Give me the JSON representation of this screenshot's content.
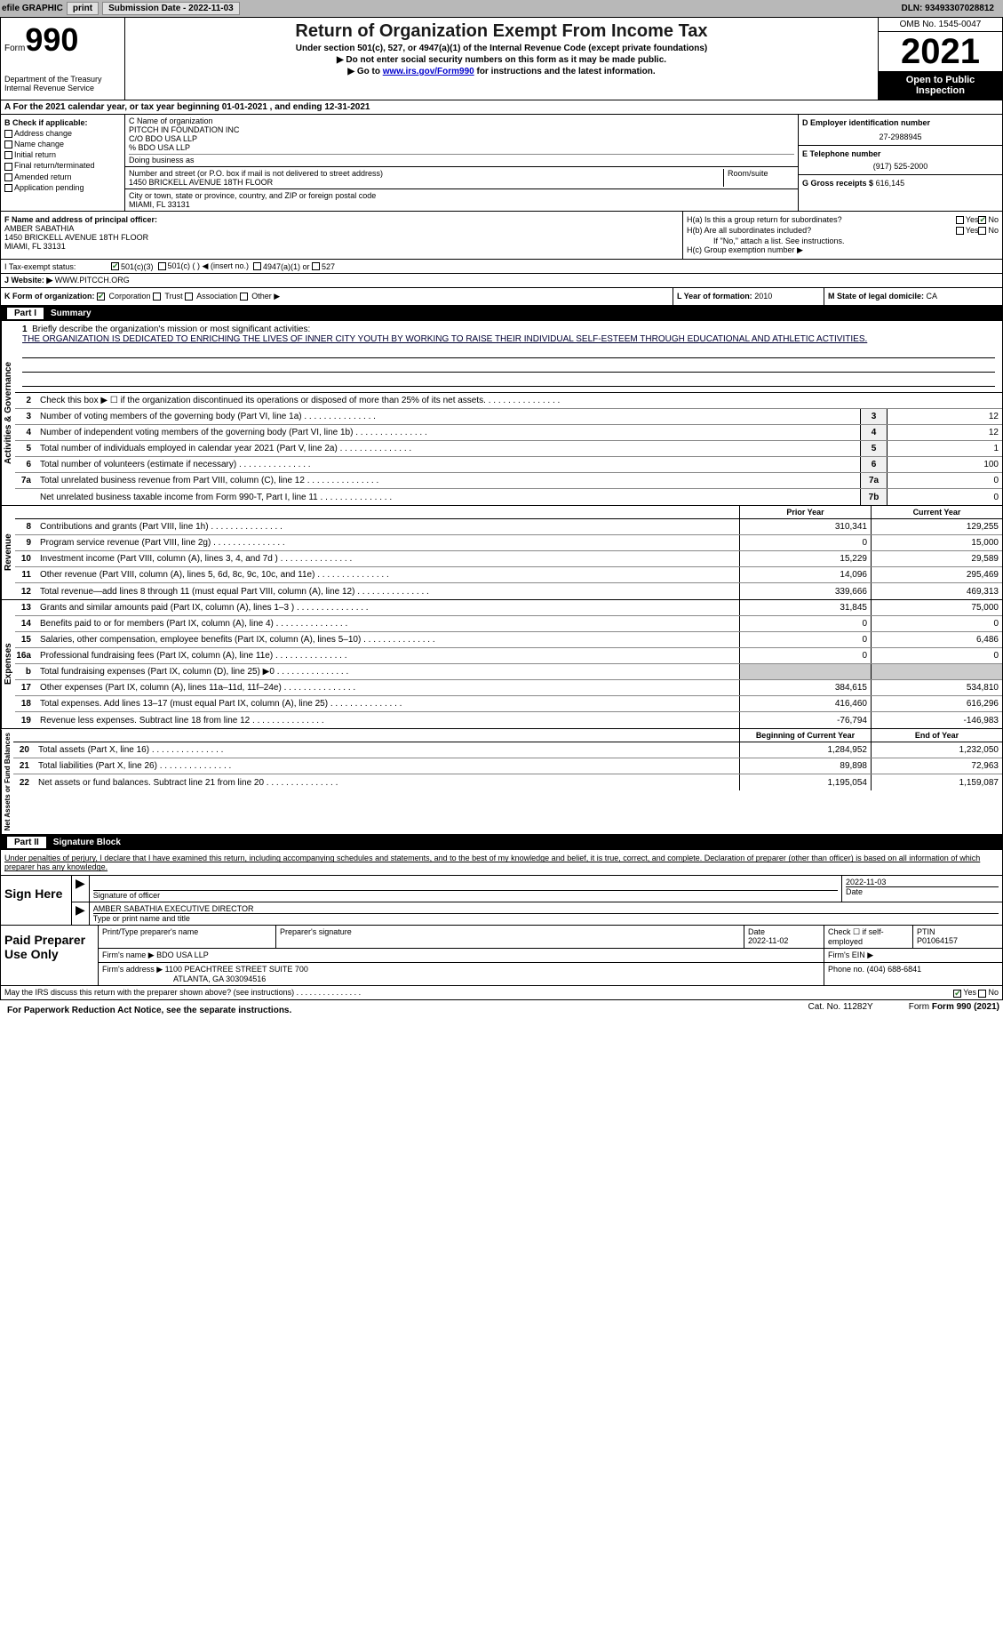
{
  "topbar": {
    "efile_label": "efile GRAPHIC",
    "print_btn": "print",
    "sub_date_label": "Submission Date - 2022-11-03",
    "dln": "DLN: 93493307028812"
  },
  "header": {
    "form_label": "Form",
    "form_num": "990",
    "dept": "Department of the Treasury\nInternal Revenue Service",
    "title": "Return of Organization Exempt From Income Tax",
    "sub1": "Under section 501(c), 527, or 4947(a)(1) of the Internal Revenue Code (except private foundations)",
    "sub2": "▶ Do not enter social security numbers on this form as it may be made public.",
    "sub3_pre": "▶ Go to ",
    "sub3_link": "www.irs.gov/Form990",
    "sub3_post": " for instructions and the latest information.",
    "omb": "OMB No. 1545-0047",
    "year": "2021",
    "open_pub": "Open to Public Inspection"
  },
  "row_a": "A For the 2021 calendar year, or tax year beginning 01-01-2021   , and ending 12-31-2021",
  "col_b": {
    "title": "B Check if applicable:",
    "items": [
      "Address change",
      "Name change",
      "Initial return",
      "Final return/terminated",
      "Amended return",
      "Application pending"
    ]
  },
  "col_c": {
    "name_label": "C Name of organization",
    "name1": "PITCCH IN FOUNDATION INC",
    "name2": "C/O BDO USA LLP",
    "name3": "% BDO USA LLP",
    "dba_label": "Doing business as",
    "addr_label": "Number and street (or P.O. box if mail is not delivered to street address)",
    "addr": "1450 BRICKELL AVENUE 18TH FLOOR",
    "room_label": "Room/suite",
    "city_label": "City or town, state or province, country, and ZIP or foreign postal code",
    "city": "MIAMI, FL  33131"
  },
  "col_right": {
    "ein_label": "D Employer identification number",
    "ein": "27-2988945",
    "phone_label": "E Telephone number",
    "phone": "(917) 525-2000",
    "gross_label": "G Gross receipts $",
    "gross": "616,145"
  },
  "block_f": {
    "label": "F  Name and address of principal officer:",
    "name": "AMBER SABATHIA",
    "addr1": "1450 BRICKELL AVENUE 18TH FLOOR",
    "addr2": "MIAMI, FL  33131"
  },
  "block_h": {
    "ha": "H(a)  Is this a group return for subordinates?",
    "hb": "H(b)  Are all subordinates included?",
    "hb_note": "If \"No,\" attach a list. See instructions.",
    "hc": "H(c)  Group exemption number ▶",
    "yes": "Yes",
    "no": "No"
  },
  "row_i": {
    "label": "I   Tax-exempt status:",
    "opt1": "501(c)(3)",
    "opt2": "501(c) (  ) ◀ (insert no.)",
    "opt3": "4947(a)(1) or",
    "opt4": "527"
  },
  "row_j": {
    "label": "J   Website: ▶",
    "value": "WWW.PITCCH.ORG"
  },
  "row_k": {
    "k1_label": "K Form of organization:",
    "k1_opts": [
      "Corporation",
      "Trust",
      "Association",
      "Other ▶"
    ],
    "k2_label": "L Year of formation:",
    "k2_val": "2010",
    "k3_label": "M State of legal domicile:",
    "k3_val": "CA"
  },
  "part1": {
    "label": "Part I",
    "title": "Summary"
  },
  "mission": {
    "num": "1",
    "label": "Briefly describe the organization's mission or most significant activities:",
    "text": "THE ORGANIZATION IS DEDICATED TO ENRICHING THE LIVES OF INNER CITY YOUTH BY WORKING TO RAISE THEIR INDIVIDUAL SELF-ESTEEM THROUGH EDUCATIONAL AND ATHLETIC ACTIVITIES."
  },
  "gov_lines": [
    {
      "n": "2",
      "d": "Check this box ▶ ☐ if the organization discontinued its operations or disposed of more than 25% of its net assets.",
      "box": "",
      "v": ""
    },
    {
      "n": "3",
      "d": "Number of voting members of the governing body (Part VI, line 1a)",
      "box": "3",
      "v": "12"
    },
    {
      "n": "4",
      "d": "Number of independent voting members of the governing body (Part VI, line 1b)",
      "box": "4",
      "v": "12"
    },
    {
      "n": "5",
      "d": "Total number of individuals employed in calendar year 2021 (Part V, line 2a)",
      "box": "5",
      "v": "1"
    },
    {
      "n": "6",
      "d": "Total number of volunteers (estimate if necessary)",
      "box": "6",
      "v": "100"
    },
    {
      "n": "7a",
      "d": "Total unrelated business revenue from Part VIII, column (C), line 12",
      "box": "7a",
      "v": "0"
    },
    {
      "n": "",
      "d": "Net unrelated business taxable income from Form 990-T, Part I, line 11",
      "box": "7b",
      "v": "0"
    }
  ],
  "col_headers": {
    "prior": "Prior Year",
    "current": "Current Year",
    "beg": "Beginning of Current Year",
    "end": "End of Year"
  },
  "rev_lines": [
    {
      "n": "8",
      "d": "Contributions and grants (Part VIII, line 1h)",
      "p": "310,341",
      "c": "129,255"
    },
    {
      "n": "9",
      "d": "Program service revenue (Part VIII, line 2g)",
      "p": "0",
      "c": "15,000"
    },
    {
      "n": "10",
      "d": "Investment income (Part VIII, column (A), lines 3, 4, and 7d )",
      "p": "15,229",
      "c": "29,589"
    },
    {
      "n": "11",
      "d": "Other revenue (Part VIII, column (A), lines 5, 6d, 8c, 9c, 10c, and 11e)",
      "p": "14,096",
      "c": "295,469"
    },
    {
      "n": "12",
      "d": "Total revenue—add lines 8 through 11 (must equal Part VIII, column (A), line 12)",
      "p": "339,666",
      "c": "469,313"
    }
  ],
  "exp_lines": [
    {
      "n": "13",
      "d": "Grants and similar amounts paid (Part IX, column (A), lines 1–3 )",
      "p": "31,845",
      "c": "75,000"
    },
    {
      "n": "14",
      "d": "Benefits paid to or for members (Part IX, column (A), line 4)",
      "p": "0",
      "c": "0"
    },
    {
      "n": "15",
      "d": "Salaries, other compensation, employee benefits (Part IX, column (A), lines 5–10)",
      "p": "0",
      "c": "6,486"
    },
    {
      "n": "16a",
      "d": "Professional fundraising fees (Part IX, column (A), line 11e)",
      "p": "0",
      "c": "0"
    },
    {
      "n": "b",
      "d": "Total fundraising expenses (Part IX, column (D), line 25) ▶0",
      "p": "",
      "c": "",
      "shaded": true
    },
    {
      "n": "17",
      "d": "Other expenses (Part IX, column (A), lines 11a–11d, 11f–24e)",
      "p": "384,615",
      "c": "534,810"
    },
    {
      "n": "18",
      "d": "Total expenses. Add lines 13–17 (must equal Part IX, column (A), line 25)",
      "p": "416,460",
      "c": "616,296"
    },
    {
      "n": "19",
      "d": "Revenue less expenses. Subtract line 18 from line 12",
      "p": "-76,794",
      "c": "-146,983"
    }
  ],
  "net_lines": [
    {
      "n": "20",
      "d": "Total assets (Part X, line 16)",
      "p": "1,284,952",
      "c": "1,232,050"
    },
    {
      "n": "21",
      "d": "Total liabilities (Part X, line 26)",
      "p": "89,898",
      "c": "72,963"
    },
    {
      "n": "22",
      "d": "Net assets or fund balances. Subtract line 21 from line 20",
      "p": "1,195,054",
      "c": "1,159,087"
    }
  ],
  "sec_labels": {
    "gov": "Activities & Governance",
    "rev": "Revenue",
    "exp": "Expenses",
    "net": "Net Assets or Fund Balances"
  },
  "part2": {
    "label": "Part II",
    "title": "Signature Block"
  },
  "sig_intro": "Under penalties of perjury, I declare that I have examined this return, including accompanying schedules and statements, and to the best of my knowledge and belief, it is true, correct, and complete. Declaration of preparer (other than officer) is based on all information of which preparer has any knowledge.",
  "sign": {
    "left": "Sign Here",
    "sig_label": "Signature of officer",
    "date": "2022-11-03",
    "date_label": "Date",
    "name": "AMBER SABATHIA  EXECUTIVE DIRECTOR",
    "name_label": "Type or print name and title"
  },
  "prep": {
    "left": "Paid Preparer Use Only",
    "h1": "Print/Type preparer's name",
    "h2": "Preparer's signature",
    "h3": "Date",
    "h3v": "2022-11-02",
    "h4": "Check ☐ if self-employed",
    "h5": "PTIN",
    "h5v": "P01064157",
    "firm_label": "Firm's name    ▶",
    "firm": "BDO USA LLP",
    "ein_label": "Firm's EIN ▶",
    "addr_label": "Firm's address ▶",
    "addr1": "1100 PEACHTREE STREET SUITE 700",
    "addr2": "ATLANTA, GA  303094516",
    "phone_label": "Phone no.",
    "phone": "(404) 688-6841"
  },
  "footer": {
    "q": "May the IRS discuss this return with the preparer shown above? (see instructions)",
    "yes": "Yes",
    "no": "No",
    "note": "For Paperwork Reduction Act Notice, see the separate instructions.",
    "cat": "Cat. No. 11282Y",
    "form": "Form 990 (2021)"
  }
}
